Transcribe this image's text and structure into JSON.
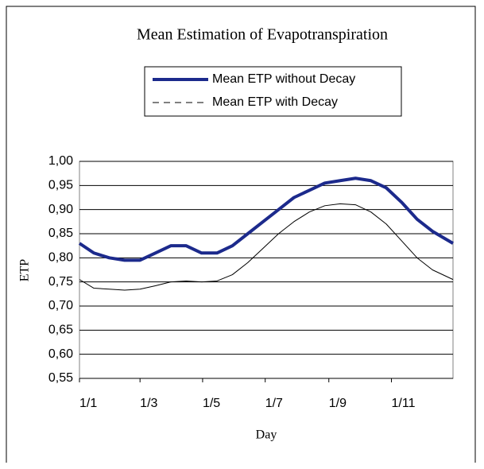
{
  "chart_data": {
    "type": "line",
    "title": "Mean Estimation of Evapotranspiration",
    "xlabel": "Day",
    "ylabel": "ETP",
    "x": [
      1,
      15,
      30,
      45,
      60,
      75,
      90,
      105,
      120,
      135,
      150,
      165,
      180,
      195,
      210,
      225,
      240,
      255,
      270,
      285,
      300,
      315,
      330,
      345,
      365
    ],
    "series": [
      {
        "name": "Mean ETP without Decay",
        "color": "#1c2a8c",
        "style": "solid",
        "values": [
          0.83,
          0.81,
          0.8,
          0.795,
          0.795,
          0.81,
          0.825,
          0.825,
          0.81,
          0.81,
          0.825,
          0.85,
          0.875,
          0.9,
          0.925,
          0.94,
          0.955,
          0.96,
          0.965,
          0.96,
          0.945,
          0.915,
          0.88,
          0.855,
          0.83
        ]
      },
      {
        "name": "Mean ETP with Decay",
        "color": "#000000",
        "style": "thin",
        "values": [
          0.755,
          0.737,
          0.735,
          0.733,
          0.735,
          0.742,
          0.75,
          0.752,
          0.75,
          0.752,
          0.765,
          0.79,
          0.82,
          0.85,
          0.875,
          0.895,
          0.908,
          0.912,
          0.91,
          0.895,
          0.87,
          0.835,
          0.8,
          0.775,
          0.755
        ]
      }
    ],
    "xlim": [
      1,
      365
    ],
    "xticks": [
      {
        "value": 1,
        "label": "1/1"
      },
      {
        "value": 60,
        "label": "1/3"
      },
      {
        "value": 121,
        "label": "1/5"
      },
      {
        "value": 182,
        "label": "1/7"
      },
      {
        "value": 244,
        "label": "1/9"
      },
      {
        "value": 305,
        "label": "1/11"
      }
    ],
    "ylim": [
      0.55,
      1
    ],
    "yticks": [
      {
        "value": 0.55,
        "label": "0,55"
      },
      {
        "value": 0.6,
        "label": "0,60"
      },
      {
        "value": 0.65,
        "label": "0,65"
      },
      {
        "value": 0.7,
        "label": "0,70"
      },
      {
        "value": 0.75,
        "label": "0,75"
      },
      {
        "value": 0.8,
        "label": "0,80"
      },
      {
        "value": 0.85,
        "label": "0,85"
      },
      {
        "value": 0.9,
        "label": "0,90"
      },
      {
        "value": 0.95,
        "label": "0,95"
      },
      {
        "value": 1,
        "label": "1,00"
      }
    ],
    "grid": true,
    "legend": "top"
  }
}
